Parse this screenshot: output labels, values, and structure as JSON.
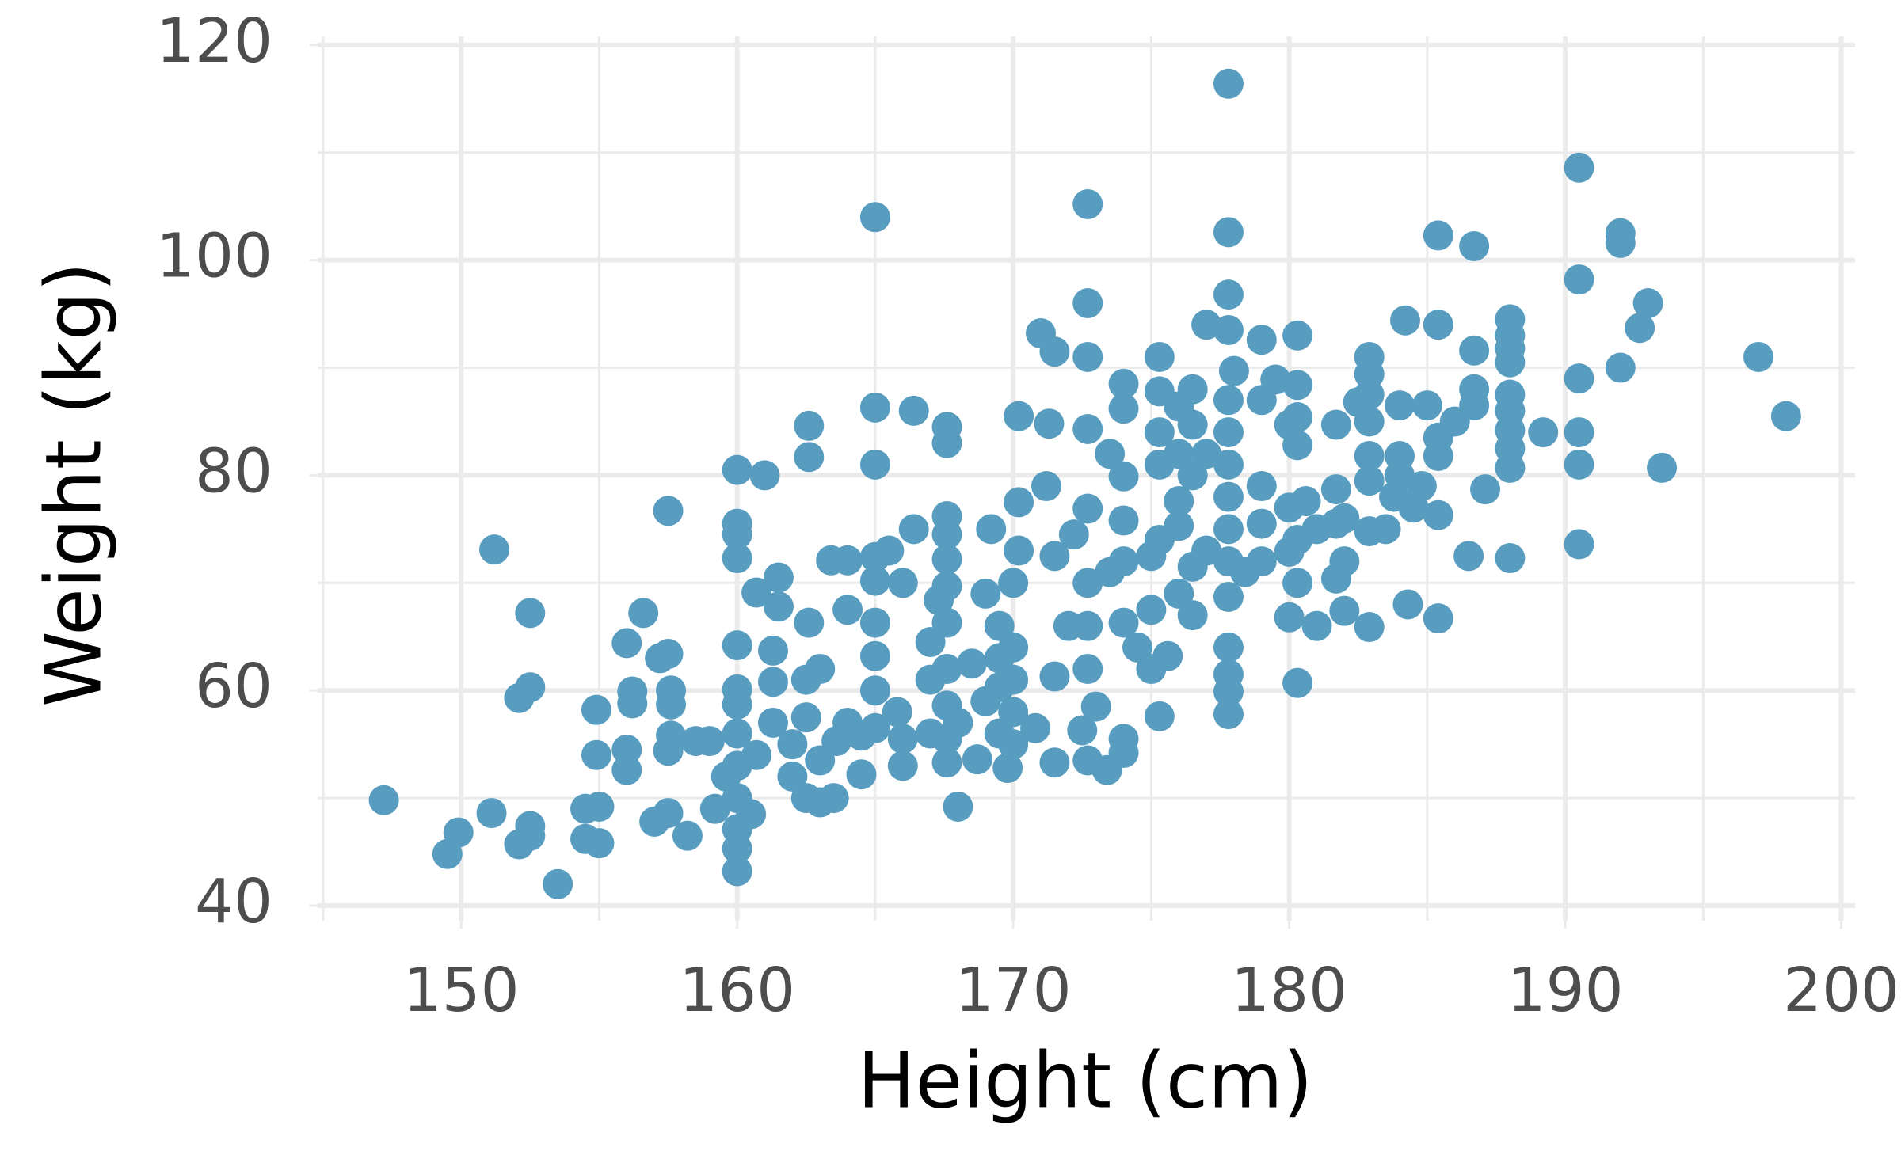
{
  "chart_data": {
    "type": "scatter",
    "x_label": "Height (cm)",
    "y_label": "Weight (kg)",
    "color": "#589dc0",
    "grid": true,
    "xlim": [
      144.8,
      200.5
    ],
    "xticks": [
      150,
      160,
      170,
      180,
      190,
      200
    ],
    "minor_xticks": [
      145,
      155,
      165,
      175,
      185,
      195
    ],
    "ylim": [
      38.6,
      120.8
    ],
    "yticks": [
      40,
      60,
      80,
      100,
      120
    ],
    "minor_yticks": [
      50,
      70,
      90,
      110
    ],
    "x": [
      147.2,
      149.5,
      149.9,
      151.1,
      151.2,
      152.1,
      152.5,
      152.5,
      152.1,
      152.5,
      152.5,
      153.5,
      154.5,
      154.5,
      155,
      155,
      154.9,
      154.9,
      156,
      156,
      156.2,
      156.2,
      156,
      156.6,
      157,
      157.2,
      157.5,
      157.5,
      157.5,
      157.5,
      157.6,
      157.6,
      157.6,
      158.2,
      158.5,
      159,
      159.2,
      159.6,
      160,
      160,
      160,
      160,
      160,
      160,
      160,
      160,
      160,
      160,
      160,
      160,
      160,
      160.5,
      160.7,
      160.7,
      161,
      161.3,
      161.3,
      161.3,
      161.5,
      161.5,
      162,
      162,
      162.5,
      162.5,
      162.5,
      162.6,
      162.6,
      162.6,
      163,
      163,
      163,
      163.4,
      163.5,
      163.6,
      164,
      164,
      164,
      164.5,
      164.5,
      165,
      165,
      165,
      165,
      165,
      165,
      165,
      165,
      165,
      165.5,
      165.8,
      166,
      166,
      166,
      166.4,
      166.4,
      167,
      167,
      167,
      167.3,
      167.6,
      167.6,
      167.6,
      167.6,
      167.6,
      167.6,
      167.6,
      167.6,
      167.6,
      167.6,
      167.6,
      168,
      168,
      168.5,
      168.7,
      169,
      169,
      169.2,
      169.5,
      169.5,
      169.5,
      169.5,
      169.8,
      170,
      170,
      170,
      170,
      170,
      170.2,
      170.2,
      170.2,
      170.8,
      171,
      171.5,
      171.5,
      171.5,
      171.2,
      171.3,
      171.5,
      172,
      172.2,
      172.5,
      172.7,
      172.7,
      172.7,
      172.7,
      172.7,
      172.7,
      172.7,
      172.7,
      172.7,
      173,
      173.4,
      173.5,
      173.5,
      174,
      174,
      174,
      174,
      174,
      174,
      174,
      174,
      174.5,
      175,
      175,
      175,
      175.3,
      175.3,
      175.3,
      175.3,
      175.3,
      175.3,
      175.6,
      176,
      176,
      176,
      176,
      176,
      176.5,
      176.5,
      176.5,
      176.5,
      176.5,
      177,
      177,
      177,
      177.8,
      177.8,
      177.8,
      177.8,
      177.8,
      177.8,
      177.8,
      177.8,
      177.8,
      177.8,
      177.8,
      177.8,
      177.8,
      177.8,
      177.8,
      178,
      178.4,
      179,
      179,
      179,
      179,
      179,
      179.5,
      180,
      180,
      180,
      180,
      180.3,
      180.3,
      180.3,
      180.3,
      180.3,
      180.3,
      180.3,
      180.6,
      181,
      181,
      181.7,
      181.7,
      181.7,
      181.7,
      182,
      182,
      182,
      182.5,
      182.9,
      182.9,
      182.9,
      182.9,
      182.9,
      182.9,
      182.9,
      182.9,
      183.5,
      183.8,
      184,
      184,
      184,
      184.2,
      184.3,
      184.5,
      184.8,
      185,
      185.4,
      185.4,
      185.4,
      185.4,
      185.4,
      185.4,
      186,
      186.5,
      186.7,
      186.7,
      186.7,
      186.7,
      187.1,
      188,
      188,
      188,
      188,
      188,
      188,
      188,
      188,
      188,
      188,
      189.2,
      190.5,
      190.5,
      190.5,
      190.5,
      190.5,
      190.5,
      192,
      192,
      192,
      192.7,
      193,
      193.5,
      197,
      198
    ],
    "values": [
      49.8,
      44.8,
      46.8,
      48.6,
      73.1,
      45.7,
      46.5,
      47.4,
      59.3,
      60.3,
      67.2,
      42,
      46.2,
      49,
      45.8,
      49.2,
      54,
      58.2,
      52.6,
      54.5,
      58.8,
      59.9,
      64.4,
      67.2,
      47.8,
      63,
      63.4,
      76.7,
      48.6,
      54.4,
      55.8,
      58.7,
      60,
      46.5,
      55.3,
      55.3,
      49,
      52,
      43.2,
      45.3,
      47.1,
      50,
      53,
      56,
      58.7,
      60.1,
      64.2,
      72.3,
      74.5,
      75.5,
      80.5,
      48.5,
      54,
      69.1,
      80,
      57,
      60.8,
      63.7,
      67.8,
      70.5,
      52,
      55,
      50,
      57.5,
      61,
      66.3,
      81.7,
      84.6,
      49.6,
      53.5,
      62,
      72.1,
      50,
      55.3,
      57,
      67.5,
      72.1,
      52.2,
      55.8,
      56.5,
      60,
      63.2,
      66.3,
      70.2,
      72.4,
      81,
      86.3,
      104,
      73,
      58,
      53,
      55.5,
      70,
      75,
      86,
      56,
      61,
      64.5,
      68.4,
      53.3,
      55.5,
      58.6,
      62,
      66.3,
      69.7,
      72.2,
      74.5,
      76.2,
      83,
      84.5,
      49.2,
      57,
      62.5,
      53.6,
      59,
      69,
      75,
      56,
      60.3,
      63,
      66,
      52.8,
      55,
      58,
      61,
      64,
      70,
      73,
      77.5,
      85.5,
      56.5,
      93.2,
      53.3,
      61.3,
      72.5,
      79,
      84.8,
      91.5,
      66,
      74.5,
      56.3,
      53.5,
      62,
      66,
      70,
      76.9,
      84.3,
      91,
      96,
      105.2,
      58.5,
      52.6,
      71,
      82,
      54.2,
      55.5,
      66.3,
      72,
      75.8,
      79.9,
      86.2,
      88.5,
      64,
      62,
      67.5,
      72.5,
      57.6,
      74,
      81,
      84,
      87.8,
      91,
      63.2,
      69,
      75.3,
      77.6,
      82,
      86.4,
      67,
      71.5,
      80,
      84.7,
      88,
      73,
      82,
      94,
      57.8,
      59.9,
      61.5,
      64,
      68.7,
      72,
      75,
      78,
      81,
      84,
      87,
      93.5,
      96.8,
      102.6,
      116.4,
      89.7,
      71,
      72,
      75.5,
      79,
      87,
      92.6,
      88.9,
      66.8,
      72.9,
      77,
      84.7,
      93,
      60.7,
      70,
      74,
      82.8,
      85.4,
      88.4,
      77.6,
      75,
      66,
      70.4,
      75.5,
      78.7,
      84.7,
      67.4,
      72,
      76,
      86.8,
      65.9,
      74.8,
      79.5,
      81.8,
      85,
      87.5,
      89.4,
      91,
      75,
      78,
      80,
      81.8,
      86.5,
      94.4,
      68,
      77,
      79,
      86.5,
      66.7,
      76.3,
      81.8,
      83.5,
      94,
      102.3,
      85,
      72.5,
      101.3,
      86.5,
      88,
      91.6,
      78.7,
      72.3,
      80.7,
      82.5,
      84.2,
      86,
      87.5,
      90.5,
      91.8,
      93,
      94.5,
      84,
      73.6,
      81,
      84,
      89,
      98.2,
      108.6,
      90,
      101.6,
      102.5,
      93.7,
      96,
      80.7,
      91,
      85.5
    ]
  }
}
